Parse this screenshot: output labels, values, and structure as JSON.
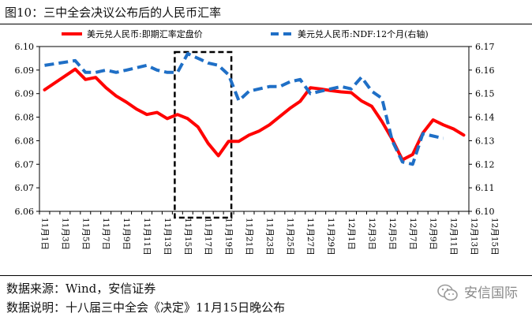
{
  "title": "图10：三中全会决议公布后的人民币汇率",
  "source": "数据来源：Wind，安信证券",
  "note": "数据说明：十八届三中全会《决定》11月15日晚公布",
  "watermark": "安信国际",
  "watermark_icon": "wechat-logo-icon",
  "chart_data": {
    "type": "line",
    "categories": [
      "11月1日",
      "11月3日",
      "11月5日",
      "11月7日",
      "11月9日",
      "11月11日",
      "11月13日",
      "11月15日",
      "11月17日",
      "11月19日",
      "11月21日",
      "11月23日",
      "11月25日",
      "11月27日",
      "11月29日",
      "12月1日",
      "12月3日",
      "12月5日",
      "12月7日",
      "12月9日",
      "12月11日",
      "12月13日",
      "12月15日"
    ],
    "series": [
      {
        "name": "美元兑人民币:即期汇率定盘价",
        "axis": "left",
        "color": "#ff0000",
        "dash": "solid",
        "points": [
          [
            0,
            6.0895
          ],
          [
            3,
            6.0945
          ],
          [
            4,
            6.092
          ],
          [
            5,
            6.0925
          ],
          [
            6,
            6.09
          ],
          [
            7,
            6.088
          ],
          [
            8,
            6.0865
          ],
          [
            9,
            6.0848
          ],
          [
            10,
            6.0835
          ],
          [
            11,
            6.084
          ],
          [
            12,
            6.0825
          ],
          [
            13,
            6.0835
          ],
          [
            14,
            6.0825
          ],
          [
            15,
            6.0805
          ],
          [
            16,
            6.0765
          ],
          [
            17,
            6.0735
          ],
          [
            18,
            6.077
          ],
          [
            19,
            6.077
          ],
          [
            20,
            6.0785
          ],
          [
            21,
            6.0795
          ],
          [
            22,
            6.081
          ],
          [
            23,
            6.083
          ],
          [
            24,
            6.085
          ],
          [
            25,
            6.0867
          ],
          [
            26,
            6.09
          ],
          [
            27,
            6.0897
          ],
          [
            28,
            6.0893
          ],
          [
            29,
            6.089
          ],
          [
            30,
            6.0888
          ],
          [
            31,
            6.0868
          ],
          [
            32,
            6.0855
          ],
          [
            33,
            6.0818
          ],
          [
            34,
            6.0775
          ],
          [
            35,
            6.0725
          ],
          [
            36,
            6.0738
          ],
          [
            37,
            6.079
          ],
          [
            38,
            6.0822
          ],
          [
            39,
            6.081
          ],
          [
            40,
            6.08
          ],
          [
            41,
            6.0785
          ]
        ]
      },
      {
        "name": "美元兑人民币:NDF:12个月(右轴)",
        "axis": "right",
        "color": "#1f6fc6",
        "dash": "dashed",
        "points": [
          [
            0,
            6.162
          ],
          [
            3,
            6.164
          ],
          [
            4,
            6.159
          ],
          [
            5,
            6.159
          ],
          [
            6,
            6.16
          ],
          [
            7,
            6.159
          ],
          [
            8,
            6.16
          ],
          [
            9,
            6.161
          ],
          [
            10,
            6.162
          ],
          [
            11,
            6.16
          ],
          [
            12,
            6.159
          ],
          [
            13,
            6.159
          ],
          [
            14,
            6.167
          ],
          [
            15,
            6.165
          ],
          [
            16,
            6.163
          ],
          [
            17,
            6.162
          ],
          [
            18,
            6.158
          ],
          [
            19,
            6.147
          ],
          [
            20,
            6.151
          ],
          [
            21,
            6.152
          ],
          [
            22,
            6.153
          ],
          [
            23,
            6.153
          ],
          [
            24,
            6.155
          ],
          [
            25,
            6.156
          ],
          [
            26,
            6.15
          ],
          [
            27,
            6.151
          ],
          [
            28,
            6.152
          ],
          [
            29,
            6.153
          ],
          [
            30,
            6.152
          ],
          [
            31,
            6.157
          ],
          [
            32,
            6.151
          ],
          [
            33,
            6.148
          ],
          [
            34,
            6.13
          ],
          [
            35,
            6.121
          ],
          [
            36,
            6.12
          ],
          [
            37,
            6.133
          ],
          [
            38,
            6.132
          ],
          [
            39,
            6.131
          ]
        ]
      }
    ],
    "y_left": {
      "ylim": [
        6.06,
        6.1
      ],
      "ticks": [
        "6.06",
        "6.07",
        "6.07",
        "6.08",
        "6.08",
        "6.09",
        "6.09",
        "6.10"
      ]
    },
    "y_right": {
      "ylim": [
        6.1,
        6.17
      ],
      "ticks": [
        "6.10",
        "6.11",
        "6.12",
        "6.13",
        "6.14",
        "6.15",
        "6.16",
        "6.17"
      ]
    },
    "x_count": 42,
    "highlight": {
      "from": 13,
      "to": 18
    },
    "legend_position": "top",
    "grid": false
  }
}
